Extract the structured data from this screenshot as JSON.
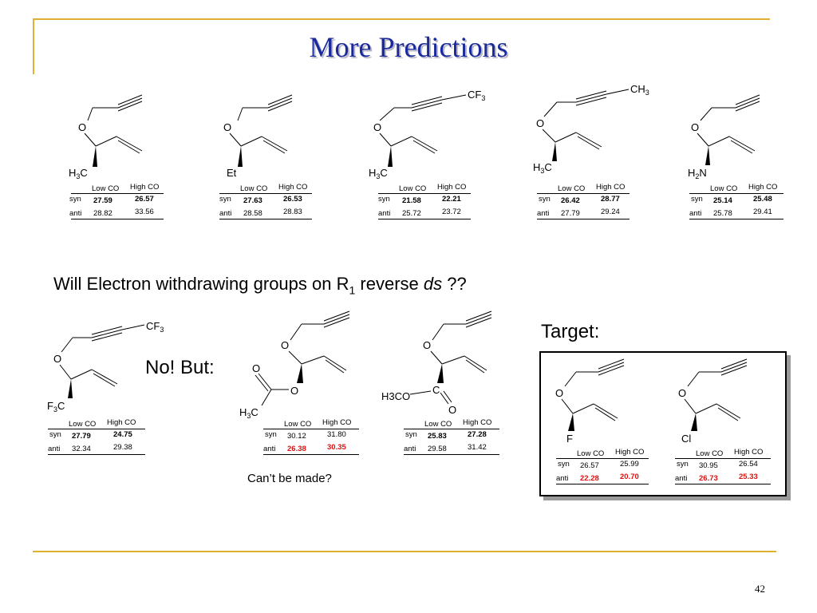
{
  "title": "More Predictions",
  "question": {
    "prefix": "Will Electron withdrawing groups on R",
    "sub": "1",
    "mid": " reverse ",
    "italic": "ds",
    "suffix": " ??"
  },
  "no_but": "No!  But:",
  "target_label": "Target:",
  "cant_be_made": "Can’t be made?",
  "page_number": "42",
  "table_headers": {
    "low": "Low CO",
    "high": "High CO",
    "syn": "syn",
    "anti": "anti"
  },
  "molecules": [
    {
      "substituent": "H3C",
      "alkyne_end": "",
      "syn_low": "27.59",
      "syn_high": "26.57",
      "anti_low": "28.82",
      "anti_high": "33.56"
    },
    {
      "substituent": "Et",
      "alkyne_end": "",
      "syn_low": "27.63",
      "syn_high": "26.53",
      "anti_low": "28.58",
      "anti_high": "28.83"
    },
    {
      "substituent": "H3C",
      "alkyne_end": "CF3",
      "syn_low": "21.58",
      "syn_high": "22.21",
      "anti_low": "25.72",
      "anti_high": "23.72"
    },
    {
      "substituent": "H3C",
      "alkyne_end": "CH3",
      "syn_low": "26.42",
      "syn_high": "28.77",
      "anti_low": "27.79",
      "anti_high": "29.24"
    },
    {
      "substituent": "H2N",
      "alkyne_end": "",
      "syn_low": "25.14",
      "syn_high": "25.48",
      "anti_low": "25.78",
      "anti_high": "29.41"
    },
    {
      "substituent": "F3C",
      "alkyne_end": "CF3",
      "syn_low": "27.79",
      "syn_high": "24.75",
      "anti_low": "32.34",
      "anti_high": "29.38"
    },
    {
      "substituent": "H3C",
      "alkyne_end": "",
      "carbonyl_o": "O",
      "ester_o": "O",
      "syn_low": "30.12",
      "syn_high": "31.80",
      "anti_low": "26.38",
      "anti_high": "30.35"
    },
    {
      "substituent": "H3CO",
      "alkyne_end": "",
      "carbonyl_c": "C",
      "carbonyl_o": "O",
      "syn_low": "25.83",
      "syn_high": "27.28",
      "anti_low": "29.58",
      "anti_high": "31.42"
    },
    {
      "substituent": "F",
      "alkyne_end": "",
      "syn_low": "26.57",
      "syn_high": "25.99",
      "anti_low": "22.28",
      "anti_high": "20.70"
    },
    {
      "substituent": "Cl",
      "alkyne_end": "",
      "syn_low": "30.95",
      "syn_high": "26.54",
      "anti_low": "26.73",
      "anti_high": "25.33"
    }
  ],
  "ether_o": "O"
}
